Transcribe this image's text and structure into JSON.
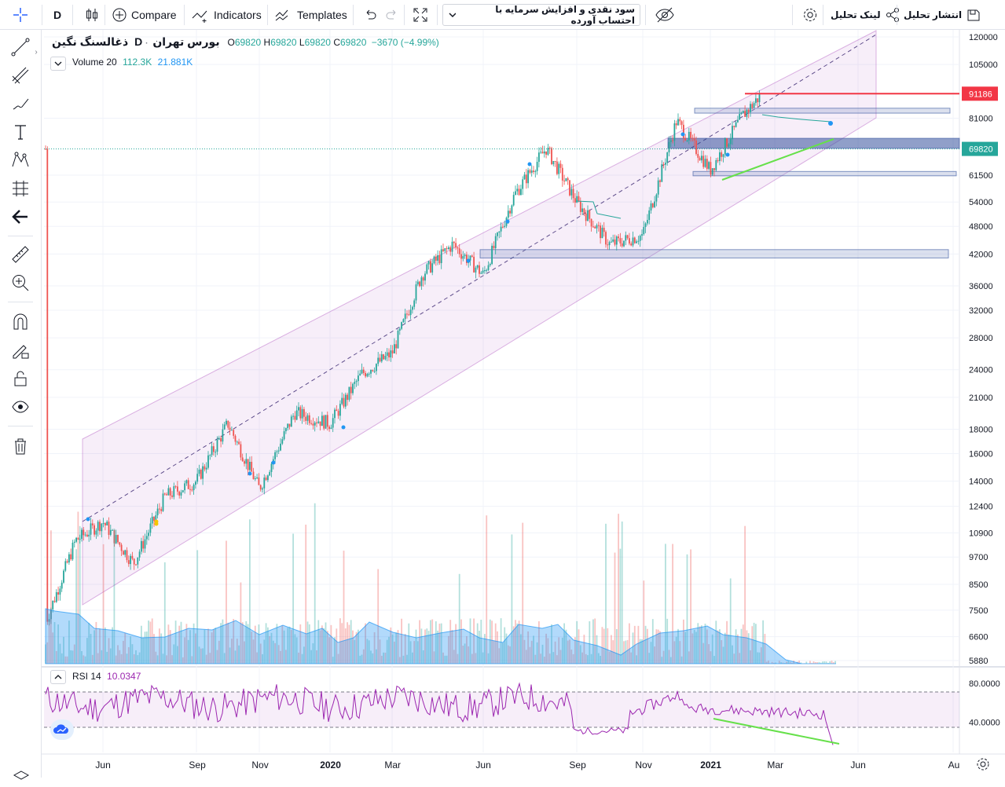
{
  "toolbar": {
    "interval": "D",
    "compare_label": "Compare",
    "indicators_label": "Indicators",
    "templates_label": "Templates",
    "layout_name": "سود نقدی و افزایش سرمایه با احتساب آورده",
    "link_label": "لینک تحلیل",
    "publish_label": "انتشار تحلیل"
  },
  "legend": {
    "symbol": "ذغالسنگ نگین",
    "interval": "D",
    "exchange": "بورس تهران",
    "open_label": "O",
    "open": "69820",
    "high_label": "H",
    "high": "69820",
    "low_label": "L",
    "low": "69820",
    "close_label": "C",
    "close": "69820",
    "change": "−3670 (−4.99%)",
    "volume_label": "Volume 20",
    "volume_value": "112.3K",
    "volume_ma": "21.881K"
  },
  "rsi_legend": {
    "label": "RSI 14",
    "value": "10.0347"
  },
  "price_axis": [
    "120000",
    "105000",
    "91186",
    "81000",
    "69820",
    "61500",
    "54000",
    "48000",
    "42000",
    "36000",
    "32000",
    "28000",
    "24000",
    "21000",
    "18000",
    "16000",
    "14000",
    "12400",
    "10900",
    "9700",
    "8500",
    "7500",
    "6600",
    "5880"
  ],
  "price_marks": {
    "last": "69820",
    "line": "91186"
  },
  "rsi_axis": [
    "80.0000",
    "40.0000"
  ],
  "time_axis": [
    "Jun",
    "Sep",
    "Nov",
    "2020",
    "Mar",
    "Jun",
    "Sep",
    "Nov",
    "2021",
    "Mar",
    "Jun",
    "Au"
  ],
  "colors": {
    "up": "#26a69a",
    "down": "#ef5350",
    "channel": "#9c27b0",
    "rsi_line": "#9c27b0",
    "volume_ma": "#2196f3",
    "red_line": "#f23645",
    "green_line": "#4caf50",
    "zone": "#8799c8",
    "zone_dark": "#34519c"
  },
  "chart_data": {
    "type": "candlestick",
    "scale": "log",
    "x": [
      "Jun",
      "Sep",
      "Nov",
      "2020",
      "Mar",
      "Jun",
      "Sep",
      "Nov",
      "2021",
      "Mar",
      "Jun"
    ],
    "price_path": [
      [
        "2019-04",
        7200
      ],
      [
        "2019-05",
        10500
      ],
      [
        "2019-06",
        11500
      ],
      [
        "2019-07",
        9400
      ],
      [
        "2019-08",
        13000
      ],
      [
        "2019-09",
        14000
      ],
      [
        "2019-10",
        18500
      ],
      [
        "2019-11",
        13500
      ],
      [
        "2019-12",
        19500
      ],
      [
        "2020-01",
        18500
      ],
      [
        "2020-02",
        23500
      ],
      [
        "2020-03",
        26000
      ],
      [
        "2020-04",
        38000
      ],
      [
        "2020-05",
        44000
      ],
      [
        "2020-06",
        38000
      ],
      [
        "2020-07",
        56000
      ],
      [
        "2020-08",
        70000
      ],
      [
        "2020-09",
        54000
      ],
      [
        "2020-10",
        44000
      ],
      [
        "2020-11",
        46000
      ],
      [
        "2020-12",
        80000
      ],
      [
        "2021-01",
        63000
      ],
      [
        "2021-02",
        82000
      ],
      [
        "2021-03",
        91186
      ],
      [
        "2021-05",
        69820
      ]
    ],
    "zones": [
      42000,
      62000,
      69820,
      85000
    ],
    "last_price": 69820,
    "high_line": 91186,
    "rsi_last": 10.0347,
    "rsi_bands": [
      70,
      30
    ]
  }
}
